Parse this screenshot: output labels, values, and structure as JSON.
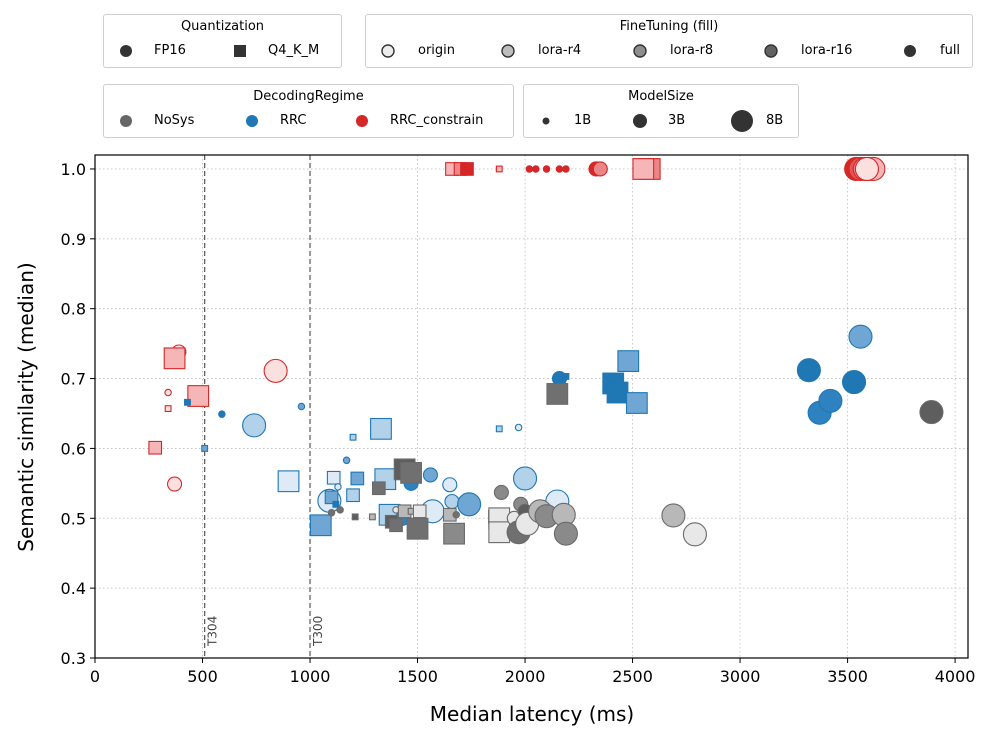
{
  "legends": {
    "quantization": {
      "title": "Quantization",
      "items": [
        {
          "label": "FP16",
          "marker": "circle"
        },
        {
          "label": "Q4_K_M",
          "marker": "square"
        }
      ]
    },
    "finetuning": {
      "title": "FineTuning (fill)",
      "items": [
        {
          "label": "origin",
          "color": "#ececec"
        },
        {
          "label": "lora-r4",
          "color": "#bdbdbd"
        },
        {
          "label": "lora-r8",
          "color": "#8e8e8e"
        },
        {
          "label": "lora-r16",
          "color": "#626262"
        },
        {
          "label": "full",
          "color": "#333333"
        }
      ]
    },
    "decoding": {
      "title": "DecodingRegime",
      "items": [
        {
          "label": "NoSys",
          "color": "#666666"
        },
        {
          "label": "RRC",
          "color": "#1f77b4"
        },
        {
          "label": "RRC_constrain",
          "color": "#d62728"
        }
      ]
    },
    "modelsize": {
      "title": "ModelSize",
      "items": [
        {
          "label": "1B",
          "size": "small"
        },
        {
          "label": "3B",
          "size": "medium"
        },
        {
          "label": "8B",
          "size": "large"
        }
      ]
    }
  },
  "chart_data": {
    "type": "scatter",
    "xlabel": "Median latency (ms)",
    "ylabel": "Semantic similarity (median)",
    "xlim": [
      0,
      4060
    ],
    "ylim": [
      0.3,
      1.02
    ],
    "xticks": [
      "0",
      "500",
      "1000",
      "1500",
      "2000",
      "2500",
      "3000",
      "3500",
      "4000"
    ],
    "xtick_values": [
      0,
      500,
      1000,
      1500,
      2000,
      2500,
      3000,
      3500,
      4000
    ],
    "yticks": [
      "0.3",
      "0.4",
      "0.5",
      "0.6",
      "0.7",
      "0.8",
      "0.9",
      "1.0"
    ],
    "ytick_values": [
      0.3,
      0.4,
      0.5,
      0.6,
      0.7,
      0.8,
      0.9,
      1.0
    ],
    "grid": true,
    "thresholds": [
      {
        "label": "T304",
        "x": 510
      },
      {
        "label": "T300",
        "x": 1000
      }
    ],
    "palettes": {
      "NoSys": {
        "origin": "#e8e8e8",
        "lora-r4": "#b8b8b8",
        "lora-r8": "#8a8a8a",
        "lora-r16": "#707070",
        "full": "#5e5e5e",
        "edge": "#6a6a6a"
      },
      "RRC": {
        "origin": "#deebf7",
        "lora-r4": "#b2d2ea",
        "lora-r8": "#6fa6d3",
        "lora-r16": "#2f82c0",
        "full": "#1f77b4",
        "edge": "#1f77b4"
      },
      "RRC_constrain": {
        "origin": "#fbe0e0",
        "lora-r4": "#f6b5b6",
        "lora-r8": "#ec8587",
        "lora-r16": "#e05558",
        "full": "#d62728",
        "edge": "#d62728"
      }
    },
    "points": [
      {
        "x": 1660,
        "y": 1.0,
        "regime": "RRC_constrain",
        "quant": "Q4_K_M",
        "size": "3B",
        "ft": "lora-r4"
      },
      {
        "x": 1700,
        "y": 1.0,
        "regime": "RRC_constrain",
        "quant": "Q4_K_M",
        "size": "3B",
        "ft": "lora-r8"
      },
      {
        "x": 1730,
        "y": 1.0,
        "regime": "RRC_constrain",
        "quant": "Q4_K_M",
        "size": "3B",
        "ft": "full"
      },
      {
        "x": 1880,
        "y": 1.0,
        "regime": "RRC_constrain",
        "quant": "Q4_K_M",
        "size": "1B",
        "ft": "lora-r4"
      },
      {
        "x": 2020,
        "y": 1.0,
        "regime": "RRC_constrain",
        "quant": "FP16",
        "size": "1B",
        "ft": "full"
      },
      {
        "x": 2050,
        "y": 1.0,
        "regime": "RRC_constrain",
        "quant": "FP16",
        "size": "1B",
        "ft": "full"
      },
      {
        "x": 2100,
        "y": 1.0,
        "regime": "RRC_constrain",
        "quant": "FP16",
        "size": "1B",
        "ft": "full"
      },
      {
        "x": 2160,
        "y": 1.0,
        "regime": "RRC_constrain",
        "quant": "FP16",
        "size": "1B",
        "ft": "full"
      },
      {
        "x": 2190,
        "y": 1.0,
        "regime": "RRC_constrain",
        "quant": "FP16",
        "size": "1B",
        "ft": "full"
      },
      {
        "x": 2330,
        "y": 1.0,
        "regime": "RRC_constrain",
        "quant": "FP16",
        "size": "3B",
        "ft": "full"
      },
      {
        "x": 2350,
        "y": 1.0,
        "regime": "RRC_constrain",
        "quant": "FP16",
        "size": "3B",
        "ft": "lora-r8"
      },
      {
        "x": 2580,
        "y": 1.0,
        "regime": "RRC_constrain",
        "quant": "Q4_K_M",
        "size": "8B",
        "ft": "lora-r8"
      },
      {
        "x": 2550,
        "y": 1.0,
        "regime": "RRC_constrain",
        "quant": "Q4_K_M",
        "size": "8B",
        "ft": "lora-r4"
      },
      {
        "x": 3540,
        "y": 1.0,
        "regime": "RRC_constrain",
        "quant": "FP16",
        "size": "8B",
        "ft": "full"
      },
      {
        "x": 3560,
        "y": 1.0,
        "regime": "RRC_constrain",
        "quant": "FP16",
        "size": "8B",
        "ft": "lora-r16"
      },
      {
        "x": 3580,
        "y": 1.0,
        "regime": "RRC_constrain",
        "quant": "FP16",
        "size": "8B",
        "ft": "lora-r8"
      },
      {
        "x": 3600,
        "y": 1.0,
        "regime": "RRC_constrain",
        "quant": "FP16",
        "size": "8B",
        "ft": "full"
      },
      {
        "x": 3620,
        "y": 1.0,
        "regime": "RRC_constrain",
        "quant": "FP16",
        "size": "8B",
        "ft": "lora-r4"
      },
      {
        "x": 3590,
        "y": 1.0,
        "regime": "RRC_constrain",
        "quant": "FP16",
        "size": "8B",
        "ft": "origin"
      },
      {
        "x": 390,
        "y": 0.738,
        "regime": "RRC_constrain",
        "quant": "FP16",
        "size": "3B",
        "ft": "origin"
      },
      {
        "x": 370,
        "y": 0.729,
        "regime": "RRC_constrain",
        "quant": "Q4_K_M",
        "size": "8B",
        "ft": "lora-r4"
      },
      {
        "x": 840,
        "y": 0.711,
        "regime": "RRC_constrain",
        "quant": "FP16",
        "size": "8B",
        "ft": "origin"
      },
      {
        "x": 480,
        "y": 0.675,
        "regime": "RRC_constrain",
        "quant": "Q4_K_M",
        "size": "8B",
        "ft": "lora-r4"
      },
      {
        "x": 340,
        "y": 0.68,
        "regime": "RRC_constrain",
        "quant": "FP16",
        "size": "1B",
        "ft": "origin"
      },
      {
        "x": 340,
        "y": 0.657,
        "regime": "RRC_constrain",
        "quant": "Q4_K_M",
        "size": "1B",
        "ft": "origin"
      },
      {
        "x": 280,
        "y": 0.601,
        "regime": "RRC_constrain",
        "quant": "Q4_K_M",
        "size": "3B",
        "ft": "lora-r4"
      },
      {
        "x": 370,
        "y": 0.549,
        "regime": "RRC_constrain",
        "quant": "FP16",
        "size": "3B",
        "ft": "origin"
      },
      {
        "x": 430,
        "y": 0.666,
        "regime": "RRC",
        "quant": "Q4_K_M",
        "size": "1B",
        "ft": "full"
      },
      {
        "x": 590,
        "y": 0.649,
        "regime": "RRC",
        "quant": "FP16",
        "size": "1B",
        "ft": "full"
      },
      {
        "x": 960,
        "y": 0.66,
        "regime": "RRC",
        "quant": "FP16",
        "size": "1B",
        "ft": "lora-r8"
      },
      {
        "x": 740,
        "y": 0.633,
        "regime": "RRC",
        "quant": "FP16",
        "size": "8B",
        "ft": "lora-r4"
      },
      {
        "x": 510,
        "y": 0.6,
        "regime": "RRC",
        "quant": "Q4_K_M",
        "size": "1B",
        "ft": "lora-r8"
      },
      {
        "x": 900,
        "y": 0.553,
        "regime": "RRC",
        "quant": "Q4_K_M",
        "size": "8B",
        "ft": "origin"
      },
      {
        "x": 1050,
        "y": 0.49,
        "regime": "RRC",
        "quant": "Q4_K_M",
        "size": "8B",
        "ft": "lora-r8"
      },
      {
        "x": 1090,
        "y": 0.525,
        "regime": "RRC",
        "quant": "FP16",
        "size": "8B",
        "ft": "origin"
      },
      {
        "x": 1110,
        "y": 0.558,
        "regime": "RRC",
        "quant": "Q4_K_M",
        "size": "3B",
        "ft": "origin"
      },
      {
        "x": 1100,
        "y": 0.53,
        "regime": "RRC",
        "quant": "Q4_K_M",
        "size": "3B",
        "ft": "lora-r8"
      },
      {
        "x": 1120,
        "y": 0.52,
        "regime": "RRC",
        "quant": "Q4_K_M",
        "size": "1B",
        "ft": "full"
      },
      {
        "x": 1130,
        "y": 0.545,
        "regime": "RRC",
        "quant": "FP16",
        "size": "1B",
        "ft": "origin"
      },
      {
        "x": 1170,
        "y": 0.583,
        "regime": "RRC",
        "quant": "FP16",
        "size": "1B",
        "ft": "lora-r8"
      },
      {
        "x": 1200,
        "y": 0.616,
        "regime": "RRC",
        "quant": "Q4_K_M",
        "size": "1B",
        "ft": "lora-r4"
      },
      {
        "x": 1200,
        "y": 0.533,
        "regime": "RRC",
        "quant": "Q4_K_M",
        "size": "3B",
        "ft": "lora-r4"
      },
      {
        "x": 1220,
        "y": 0.557,
        "regime": "RRC",
        "quant": "Q4_K_M",
        "size": "3B",
        "ft": "lora-r8"
      },
      {
        "x": 1330,
        "y": 0.628,
        "regime": "RRC",
        "quant": "Q4_K_M",
        "size": "8B",
        "ft": "lora-r4"
      },
      {
        "x": 1350,
        "y": 0.556,
        "regime": "RRC",
        "quant": "Q4_K_M",
        "size": "8B",
        "ft": "lora-r4"
      },
      {
        "x": 1370,
        "y": 0.505,
        "regime": "RRC",
        "quant": "Q4_K_M",
        "size": "8B",
        "ft": "lora-r4"
      },
      {
        "x": 1430,
        "y": 0.5,
        "regime": "RRC",
        "quant": "FP16",
        "size": "3B",
        "ft": "lora-r16"
      },
      {
        "x": 1470,
        "y": 0.55,
        "regime": "RRC",
        "quant": "FP16",
        "size": "3B",
        "ft": "lora-r16"
      },
      {
        "x": 1560,
        "y": 0.562,
        "regime": "RRC",
        "quant": "FP16",
        "size": "3B",
        "ft": "lora-r8"
      },
      {
        "x": 1570,
        "y": 0.51,
        "regime": "RRC",
        "quant": "FP16",
        "size": "8B",
        "ft": "origin"
      },
      {
        "x": 1650,
        "y": 0.548,
        "regime": "RRC",
        "quant": "FP16",
        "size": "3B",
        "ft": "origin"
      },
      {
        "x": 1660,
        "y": 0.524,
        "regime": "RRC",
        "quant": "FP16",
        "size": "3B",
        "ft": "lora-r4"
      },
      {
        "x": 1740,
        "y": 0.52,
        "regime": "RRC",
        "quant": "FP16",
        "size": "8B",
        "ft": "lora-r8"
      },
      {
        "x": 1880,
        "y": 0.628,
        "regime": "RRC",
        "quant": "Q4_K_M",
        "size": "1B",
        "ft": "lora-r4"
      },
      {
        "x": 1970,
        "y": 0.63,
        "regime": "RRC",
        "quant": "FP16",
        "size": "1B",
        "ft": "origin"
      },
      {
        "x": 2000,
        "y": 0.557,
        "regime": "RRC",
        "quant": "FP16",
        "size": "8B",
        "ft": "lora-r4"
      },
      {
        "x": 2150,
        "y": 0.524,
        "regime": "RRC",
        "quant": "FP16",
        "size": "8B",
        "ft": "origin"
      },
      {
        "x": 2160,
        "y": 0.7,
        "regime": "RRC",
        "quant": "FP16",
        "size": "3B",
        "ft": "full"
      },
      {
        "x": 2190,
        "y": 0.703,
        "regime": "RRC",
        "quant": "Q4_K_M",
        "size": "1B",
        "ft": "full"
      },
      {
        "x": 2410,
        "y": 0.693,
        "regime": "RRC",
        "quant": "Q4_K_M",
        "size": "8B",
        "ft": "full"
      },
      {
        "x": 2430,
        "y": 0.68,
        "regime": "RRC",
        "quant": "Q4_K_M",
        "size": "8B",
        "ft": "full"
      },
      {
        "x": 2480,
        "y": 0.725,
        "regime": "RRC",
        "quant": "Q4_K_M",
        "size": "8B",
        "ft": "lora-r8"
      },
      {
        "x": 2520,
        "y": 0.665,
        "regime": "RRC",
        "quant": "Q4_K_M",
        "size": "8B",
        "ft": "lora-r8"
      },
      {
        "x": 3320,
        "y": 0.712,
        "regime": "RRC",
        "quant": "FP16",
        "size": "8B",
        "ft": "full"
      },
      {
        "x": 3370,
        "y": 0.651,
        "regime": "RRC",
        "quant": "FP16",
        "size": "8B",
        "ft": "lora-r16"
      },
      {
        "x": 3420,
        "y": 0.668,
        "regime": "RRC",
        "quant": "FP16",
        "size": "8B",
        "ft": "lora-r16"
      },
      {
        "x": 3530,
        "y": 0.695,
        "regime": "RRC",
        "quant": "FP16",
        "size": "8B",
        "ft": "full"
      },
      {
        "x": 3560,
        "y": 0.76,
        "regime": "RRC",
        "quant": "FP16",
        "size": "8B",
        "ft": "lora-r8"
      },
      {
        "x": 1100,
        "y": 0.508,
        "regime": "NoSys",
        "quant": "FP16",
        "size": "1B",
        "ft": "lora-r16"
      },
      {
        "x": 1140,
        "y": 0.512,
        "regime": "NoSys",
        "quant": "FP16",
        "size": "1B",
        "ft": "lora-r16"
      },
      {
        "x": 1210,
        "y": 0.502,
        "regime": "NoSys",
        "quant": "Q4_K_M",
        "size": "1B",
        "ft": "full"
      },
      {
        "x": 1290,
        "y": 0.502,
        "regime": "NoSys",
        "quant": "Q4_K_M",
        "size": "1B",
        "ft": "lora-r4"
      },
      {
        "x": 1320,
        "y": 0.543,
        "regime": "NoSys",
        "quant": "Q4_K_M",
        "size": "3B",
        "ft": "lora-r16"
      },
      {
        "x": 1380,
        "y": 0.495,
        "regime": "NoSys",
        "quant": "Q4_K_M",
        "size": "3B",
        "ft": "full"
      },
      {
        "x": 1400,
        "y": 0.49,
        "regime": "NoSys",
        "quant": "Q4_K_M",
        "size": "3B",
        "ft": "lora-r16"
      },
      {
        "x": 1400,
        "y": 0.512,
        "regime": "NoSys",
        "quant": "FP16",
        "size": "1B",
        "ft": "origin"
      },
      {
        "x": 1440,
        "y": 0.51,
        "regime": "NoSys",
        "quant": "Q4_K_M",
        "size": "3B",
        "ft": "lora-r4"
      },
      {
        "x": 1470,
        "y": 0.51,
        "regime": "NoSys",
        "quant": "Q4_K_M",
        "size": "1B",
        "ft": "lora-r4"
      },
      {
        "x": 1440,
        "y": 0.57,
        "regime": "NoSys",
        "quant": "Q4_K_M",
        "size": "8B",
        "ft": "full"
      },
      {
        "x": 1470,
        "y": 0.565,
        "regime": "NoSys",
        "quant": "Q4_K_M",
        "size": "8B",
        "ft": "lora-r16"
      },
      {
        "x": 1500,
        "y": 0.485,
        "regime": "NoSys",
        "quant": "Q4_K_M",
        "size": "8B",
        "ft": "lora-r16"
      },
      {
        "x": 1510,
        "y": 0.51,
        "regime": "NoSys",
        "quant": "Q4_K_M",
        "size": "3B",
        "ft": "origin"
      },
      {
        "x": 1650,
        "y": 0.505,
        "regime": "NoSys",
        "quant": "Q4_K_M",
        "size": "3B",
        "ft": "lora-r4"
      },
      {
        "x": 1670,
        "y": 0.478,
        "regime": "NoSys",
        "quant": "Q4_K_M",
        "size": "8B",
        "ft": "lora-r8"
      },
      {
        "x": 1680,
        "y": 0.505,
        "regime": "NoSys",
        "quant": "FP16",
        "size": "1B",
        "ft": "lora-r16"
      },
      {
        "x": 1860,
        "y": 0.502,
        "regime": "NoSys",
        "quant": "Q4_K_M",
        "size": "3B",
        "ft": "lora-r4"
      },
      {
        "x": 1880,
        "y": 0.5,
        "regime": "NoSys",
        "quant": "Q4_K_M",
        "size": "8B",
        "ft": "origin"
      },
      {
        "x": 1880,
        "y": 0.48,
        "regime": "NoSys",
        "quant": "Q4_K_M",
        "size": "8B",
        "ft": "origin"
      },
      {
        "x": 1890,
        "y": 0.537,
        "regime": "NoSys",
        "quant": "FP16",
        "size": "3B",
        "ft": "lora-r8"
      },
      {
        "x": 1950,
        "y": 0.5,
        "regime": "NoSys",
        "quant": "FP16",
        "size": "3B",
        "ft": "origin"
      },
      {
        "x": 1970,
        "y": 0.48,
        "regime": "NoSys",
        "quant": "FP16",
        "size": "8B",
        "ft": "lora-r16"
      },
      {
        "x": 1980,
        "y": 0.52,
        "regime": "NoSys",
        "quant": "FP16",
        "size": "3B",
        "ft": "lora-r8"
      },
      {
        "x": 2000,
        "y": 0.51,
        "regime": "NoSys",
        "quant": "FP16",
        "size": "3B",
        "ft": "full"
      },
      {
        "x": 2010,
        "y": 0.492,
        "regime": "NoSys",
        "quant": "FP16",
        "size": "8B",
        "ft": "origin"
      },
      {
        "x": 2070,
        "y": 0.51,
        "regime": "NoSys",
        "quant": "FP16",
        "size": "8B",
        "ft": "lora-r4"
      },
      {
        "x": 2100,
        "y": 0.503,
        "regime": "NoSys",
        "quant": "FP16",
        "size": "8B",
        "ft": "lora-r8"
      },
      {
        "x": 2180,
        "y": 0.505,
        "regime": "NoSys",
        "quant": "FP16",
        "size": "8B",
        "ft": "lora-r4"
      },
      {
        "x": 2190,
        "y": 0.478,
        "regime": "NoSys",
        "quant": "FP16",
        "size": "8B",
        "ft": "lora-r8"
      },
      {
        "x": 2150,
        "y": 0.678,
        "regime": "NoSys",
        "quant": "Q4_K_M",
        "size": "8B",
        "ft": "lora-r16"
      },
      {
        "x": 2690,
        "y": 0.504,
        "regime": "NoSys",
        "quant": "FP16",
        "size": "8B",
        "ft": "lora-r4"
      },
      {
        "x": 2790,
        "y": 0.477,
        "regime": "NoSys",
        "quant": "FP16",
        "size": "8B",
        "ft": "origin"
      },
      {
        "x": 3890,
        "y": 0.652,
        "regime": "NoSys",
        "quant": "FP16",
        "size": "8B",
        "ft": "full"
      }
    ]
  }
}
